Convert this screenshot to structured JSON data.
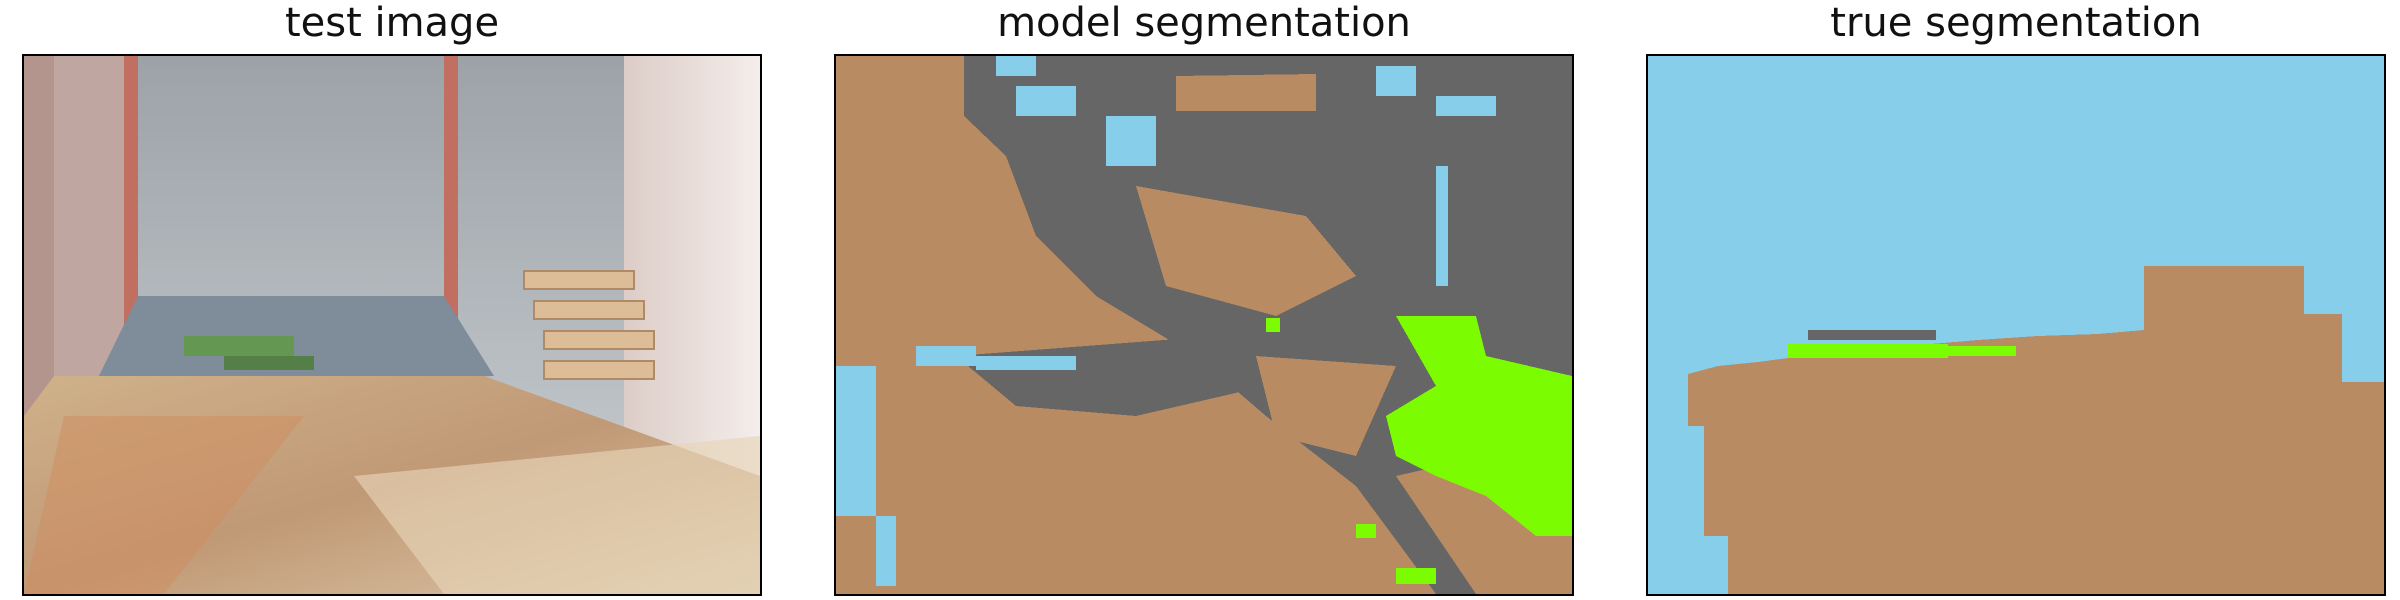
{
  "panels": [
    {
      "title": "test image"
    },
    {
      "title": "model segmentation"
    },
    {
      "title": "true segmentation"
    }
  ],
  "palette": {
    "sky": "#87ceeb",
    "wood": "#b88b63",
    "gray": "#666666",
    "green": "#7cfc00"
  },
  "icons": {
    "photo": "photo-illustration"
  }
}
